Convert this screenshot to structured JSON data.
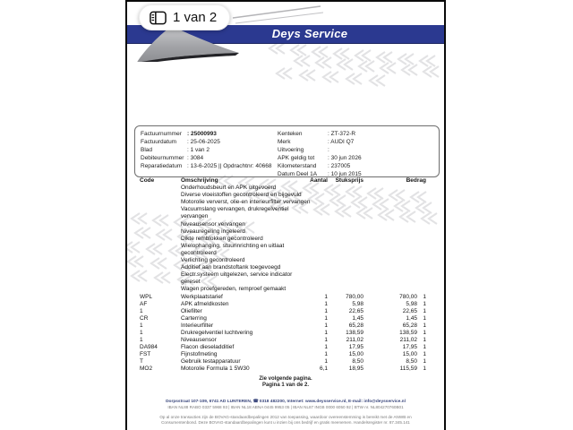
{
  "viewer": {
    "page_badge": "1 van 2"
  },
  "header": {
    "company": "Deys Service"
  },
  "colors": {
    "banner_blue": "#2b3990",
    "logo_gray": "#9b9ca0",
    "watermark_gray": "#d2d2d5"
  },
  "invoice_info": {
    "left": [
      {
        "label": "Factuurnummer",
        "value": "25000993"
      },
      {
        "label": "Factuurdatum",
        "value": "25-06-2025"
      },
      {
        "label": "Blad",
        "value": "1 van 2"
      },
      {
        "label": "Debiteurnummer",
        "value": "3084"
      },
      {
        "label": "Reparatiedatum",
        "value": "13-6-2025 || Opdrachtnr: 40668"
      }
    ],
    "right": [
      {
        "label": "Kenteken",
        "value": "ZT-372-R"
      },
      {
        "label": "Merk",
        "value": "AUDI Q7"
      },
      {
        "label": "Uitvoering",
        "value": ""
      },
      {
        "label": "APK geldig tot",
        "value": "30 jun 2026"
      },
      {
        "label": "Kilometerstand",
        "value": "237005"
      },
      {
        "label": "Datum Deel 1A",
        "value": "10 jun 2015"
      }
    ]
  },
  "table": {
    "headers": {
      "code": "Code",
      "description": "Omschrijving",
      "quantity": "Aantal",
      "unit_price": "Stuksprijs",
      "amount": "Bedrag"
    },
    "work_lines": [
      "Onderhoudsbeurt en APK uitgevoerd",
      "Diverse vloeistoffen gecontroleerd en bijgevuld",
      "Motorolie ververst, olie-en interieurfilter vervangen",
      "Vacuumslang vervangen, drukregelventiel",
      "vervangen",
      "Niveausensor vervangen",
      "Niveauregeling ingeleerd",
      "Dikte remblokken gecontroleerd",
      "Wielophanging, stuurinrichting en uitlaat",
      "gecontroleerd",
      "Verlichting gecontroleerd",
      "Additief aan brandstoftank toegevoegd",
      "Electr.systeem uitgelezen, service indicator",
      "gereset",
      "Wagen proefgereden, remproef gemaakt"
    ],
    "items": [
      {
        "code": "WPL",
        "desc": "Werkplaatstarief",
        "qty": "1",
        "price": "780,00",
        "amount": "780,00",
        "vat": "1"
      },
      {
        "code": "AF",
        "desc": "APK afmeldkosten",
        "qty": "1",
        "price": "5,98",
        "amount": "5,98",
        "vat": "1"
      },
      {
        "code": "1",
        "desc": "Oliefilter",
        "qty": "1",
        "price": "22,65",
        "amount": "22,65",
        "vat": "1"
      },
      {
        "code": "CR",
        "desc": "Carterring",
        "qty": "1",
        "price": "1,45",
        "amount": "1,45",
        "vat": "1"
      },
      {
        "code": "1",
        "desc": "Interieurfilter",
        "qty": "1",
        "price": "65,28",
        "amount": "65,28",
        "vat": "1"
      },
      {
        "code": "1",
        "desc": "Drukregelventiel luchtvering",
        "qty": "1",
        "price": "138,59",
        "amount": "138,59",
        "vat": "1"
      },
      {
        "code": "1",
        "desc": "Niveausensor",
        "qty": "1",
        "price": "211,02",
        "amount": "211,02",
        "vat": "1"
      },
      {
        "code": "DA984",
        "desc": "Flacon dieseladditief",
        "qty": "1",
        "price": "17,95",
        "amount": "17,95",
        "vat": "1"
      },
      {
        "code": "FST",
        "desc": "Fijnstofmeting",
        "qty": "1",
        "price": "15,00",
        "amount": "15,00",
        "vat": "1"
      },
      {
        "code": "T",
        "desc": "Gebruik testapparatuur",
        "qty": "1",
        "price": "8,50",
        "amount": "8,50",
        "vat": "1"
      },
      {
        "code": "MO2",
        "desc": "Motorolie Formula 1 5W30",
        "qty": "6,1",
        "price": "18,95",
        "amount": "115,59",
        "vat": "1"
      }
    ],
    "continuation_note": {
      "line1": "Zie volgende pagina.",
      "line2": "Pagina 1 van de 2."
    }
  },
  "footer": {
    "address_line": "Dorpsstraat 107-109, 6741 AD LUNTEREN, ☎ 0318 482200, Internet: www.deysservice.nl, E-mail: info@deysservice.nl",
    "bank_line": "IBAN NL88 RABO 0337 5968 93  |  IBAN NL18 ABNA 0445 9953 05  |  IBAN NL87 INGB 0000 6050 92  |  BTW nr. NL804270760B01",
    "terms": "Op al onze transacties zijn de BOVAG-standaardbepalingen 2012 van toepassing, waardoor overeenstemming is bereikt met de ANWB en Consumentenbond. Deze BOVAG-standaardbepalingen kunt u inzien bij ons bedrijf en gratis meenemen. Handelsregister nr. 87.345.141"
  }
}
